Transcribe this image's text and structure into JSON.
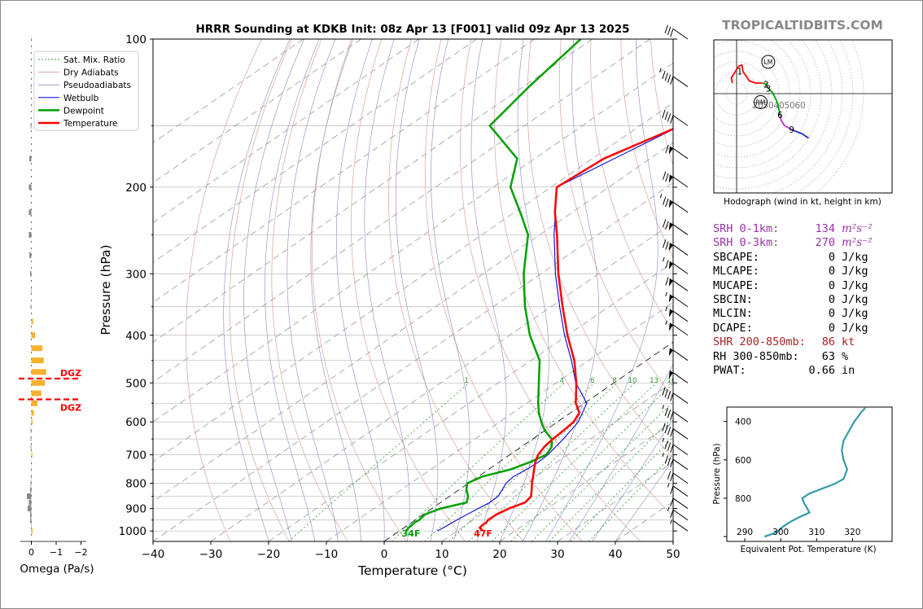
{
  "title": "HRRR Sounding at KDKB Init: 08z Apr 13 [F001] valid 09z Apr 13 2025",
  "watermark": "TROPICALTIDBITS.COM",
  "colors": {
    "temperature": "#ff0000",
    "dewpoint": "#00a000",
    "wetbulb": "#0000dd",
    "theta_e": "#3399aa",
    "srh": "#9933aa",
    "shr": "#aa2222",
    "dgz": "#ff0000",
    "omega_up": "#f5b030",
    "omega_down": "#888888"
  },
  "chart_data": [
    {
      "type": "line",
      "name": "skew-t",
      "xlabel": "Temperature (°C)",
      "ylabel": "Pressure (hPa)",
      "xlim": [
        -40,
        50
      ],
      "ylim": [
        1050,
        100
      ],
      "y_scale": "log",
      "x_ticks": [
        "−40",
        "−30",
        "−20",
        "−10",
        "0",
        "10",
        "20",
        "30",
        "40",
        "50"
      ],
      "y_ticks": [
        "100",
        "200",
        "300",
        "400",
        "500",
        "600",
        "700",
        "800",
        "900",
        "1000"
      ],
      "legend_position": "upper-left",
      "legend": [
        "Sat. Mix. Ratio",
        "Dry Adiabats",
        "Pseudoadiabats",
        "Wetbulb",
        "Dewpoint",
        "Temperature"
      ],
      "mixing_ratio_labels": [
        "1",
        "4",
        "6",
        "8",
        "10",
        "13",
        "16",
        "20",
        "24",
        "30",
        "36"
      ],
      "series": [
        {
          "name": "Temperature",
          "pressure": [
            1000,
            985,
            975,
            960,
            950,
            925,
            900,
            875,
            850,
            825,
            800,
            775,
            750,
            725,
            700,
            675,
            650,
            625,
            600,
            575,
            550,
            500,
            450,
            400,
            350,
            300,
            250,
            225,
            200,
            175,
            150,
            125,
            100
          ],
          "temperature": [
            14.5,
            13.1,
            12.9,
            12.9,
            12.6,
            12.7,
            13.3,
            14.6,
            14.1,
            12.6,
            11,
            9.5,
            7.9,
            6.3,
            4.9,
            4,
            3.5,
            3.2,
            2.8,
            1.5,
            -1.5,
            -6.5,
            -12.5,
            -20,
            -28,
            -37,
            -47,
            -53,
            -59,
            -58,
            -53,
            -54,
            -54
          ]
        },
        {
          "name": "Dewpoint",
          "pressure": [
            1000,
            985,
            975,
            960,
            950,
            925,
            900,
            875,
            850,
            825,
            800,
            775,
            750,
            725,
            700,
            675,
            650,
            625,
            600,
            575,
            550,
            500,
            450,
            400,
            350,
            300,
            250,
            225,
            200,
            175,
            150,
            125,
            100
          ],
          "temperature": [
            1.2,
            0.8,
            0.7,
            0.5,
            0.7,
            0.3,
            1.5,
            4.5,
            3.2,
            1.3,
            -0.2,
            0.7,
            3.8,
            5.3,
            6.3,
            5.3,
            3.3,
            0,
            -2.8,
            -5.5,
            -8,
            -13,
            -18.5,
            -26.5,
            -34.5,
            -43,
            -52,
            -59,
            -67,
            -73,
            -86,
            -89,
            -92
          ]
        },
        {
          "name": "Wetbulb",
          "pressure": [
            1000,
            975,
            950,
            925,
            900,
            875,
            850,
            825,
            800,
            775,
            750,
            725,
            700,
            650,
            600,
            550,
            500,
            450,
            400,
            350,
            300,
            250,
            200,
            150,
            125,
            100
          ],
          "temperature": [
            6.6,
            6.9,
            7.2,
            7.6,
            8,
            8.5,
            8.4,
            7.5,
            6.5,
            6.1,
            6.6,
            6.8,
            6.6,
            5.3,
            3.6,
            0.4,
            -6.6,
            -13,
            -20.5,
            -28.5,
            -37.5,
            -47.5,
            -59,
            -53,
            -54,
            -54
          ]
        }
      ],
      "annotations": [
        "34F",
        "47F"
      ]
    },
    {
      "type": "bar",
      "name": "omega",
      "xlabel": "Omega (Pa/s)",
      "x_ticks": [
        "0",
        "−1",
        "−2"
      ],
      "xlim": [
        0.25,
        -2.2
      ],
      "pressure": [
        1000,
        975,
        950,
        925,
        900,
        875,
        850,
        825,
        800,
        775,
        750,
        725,
        700,
        675,
        650,
        625,
        600,
        575,
        550,
        525,
        500,
        475,
        450,
        425,
        400,
        375,
        350,
        325,
        300,
        275,
        250,
        225,
        200,
        175,
        150,
        125,
        100
      ],
      "values": [
        -0.05,
        0.02,
        0.05,
        0.05,
        0.15,
        0.1,
        0.18,
        0.05,
        0.03,
        0.02,
        0.01,
        0.01,
        -0.04,
        0.0,
        0.0,
        0.0,
        -0.05,
        -0.1,
        -0.25,
        -0.4,
        -0.55,
        -0.6,
        -0.5,
        -0.45,
        -0.15,
        -0.07,
        0.0,
        0.02,
        0.05,
        0.08,
        0.1,
        0.1,
        0.1,
        0.08,
        0.03,
        0.02,
        0.01
      ],
      "dgz_label": "DGZ",
      "dgz_pressure": [
        490,
        540
      ]
    },
    {
      "type": "line",
      "name": "hodograph",
      "caption": "Hodograph (wind in kt, height in km)",
      "ring_labels": [
        "20",
        "30",
        "40",
        "50",
        "60"
      ],
      "height_labels": [
        "1",
        "2",
        "3",
        "6",
        "9"
      ],
      "storm_motion_labels": [
        "LM",
        "RM"
      ],
      "u": [
        -4,
        -5,
        -3,
        2,
        5,
        6,
        12,
        18,
        24,
        28,
        29,
        30,
        34,
        37,
        39,
        40,
        41,
        42,
        45,
        52,
        62,
        68
      ],
      "v": [
        10,
        15,
        18,
        26,
        27,
        21,
        12,
        10,
        10,
        9,
        6,
        5,
        1,
        -5,
        -10,
        -15,
        -20,
        -25,
        -30,
        -34,
        -38,
        -42
      ],
      "height_km": [
        0,
        0.3,
        0.5,
        0.8,
        0.9,
        1,
        1.5,
        2,
        2.5,
        3,
        3.2,
        3.5,
        4,
        4.5,
        5,
        5.5,
        6,
        6.5,
        7.5,
        9,
        10.5,
        12
      ]
    },
    {
      "type": "line",
      "name": "theta-e",
      "xlabel": "Equivalent Pot. Temperature (K)",
      "ylabel": "Pressure (hPa)",
      "x_ticks": [
        "290",
        "300",
        "310",
        "320"
      ],
      "y_ticks": [
        "400",
        "600",
        "800"
      ],
      "xlim": [
        285,
        331
      ],
      "ylim": [
        1025,
        325
      ],
      "pressure": [
        1000,
        990,
        975,
        950,
        925,
        900,
        875,
        850,
        825,
        800,
        775,
        750,
        725,
        700,
        650,
        600,
        550,
        500,
        450,
        400,
        350,
        330
      ],
      "theta_e": [
        295.5,
        297,
        299,
        300.5,
        302.5,
        305,
        308,
        307.3,
        306.5,
        306,
        308,
        311.5,
        315,
        317.5,
        318.5,
        317.5,
        317,
        317.5,
        319,
        320.5,
        322.5,
        323.5
      ]
    }
  ],
  "stats": [
    {
      "label": "SRH 0-1km:",
      "value": "134",
      "unit": "m²s⁻²",
      "kind": "srh"
    },
    {
      "label": "SRH 0-3km:",
      "value": "270",
      "unit": "m²s⁻²",
      "kind": "srh"
    },
    {
      "label": "SBCAPE:",
      "value": "0",
      "unit": "J/kg",
      "kind": "plain"
    },
    {
      "label": "MLCAPE:",
      "value": "0",
      "unit": "J/kg",
      "kind": "plain"
    },
    {
      "label": "MUCAPE:",
      "value": "0",
      "unit": "J/kg",
      "kind": "plain"
    },
    {
      "label": "SBCIN:",
      "value": "0",
      "unit": "J/kg",
      "kind": "plain"
    },
    {
      "label": "MLCIN:",
      "value": "0",
      "unit": "J/kg",
      "kind": "plain"
    },
    {
      "label": "DCAPE:",
      "value": "0",
      "unit": "J/kg",
      "kind": "plain"
    },
    {
      "label": "SHR 200-850mb:",
      "value": "86",
      "unit": "kt",
      "kind": "shr"
    },
    {
      "label": "RH 300-850mb:",
      "value": "63",
      "unit": "%",
      "kind": "plain"
    },
    {
      "label": "PWAT:",
      "value": "0.66",
      "unit": "in",
      "kind": "plain"
    }
  ],
  "wind_barbs": [
    {
      "p": 100,
      "kt": 30
    },
    {
      "p": 125,
      "kt": 45
    },
    {
      "p": 150,
      "kt": 40
    },
    {
      "p": 175,
      "kt": 60
    },
    {
      "p": 200,
      "kt": 70
    },
    {
      "p": 225,
      "kt": 75
    },
    {
      "p": 250,
      "kt": 70
    },
    {
      "p": 275,
      "kt": 70
    },
    {
      "p": 300,
      "kt": 65
    },
    {
      "p": 325,
      "kt": 60
    },
    {
      "p": 350,
      "kt": 55
    },
    {
      "p": 375,
      "kt": 55
    },
    {
      "p": 400,
      "kt": 55
    },
    {
      "p": 450,
      "kt": 50
    },
    {
      "p": 500,
      "kt": 50
    },
    {
      "p": 550,
      "kt": 40
    },
    {
      "p": 600,
      "kt": 35
    },
    {
      "p": 650,
      "kt": 40
    },
    {
      "p": 700,
      "kt": 35
    },
    {
      "p": 750,
      "kt": 35
    },
    {
      "p": 800,
      "kt": 20
    },
    {
      "p": 850,
      "kt": 15
    },
    {
      "p": 900,
      "kt": 10
    },
    {
      "p": 950,
      "kt": 15
    },
    {
      "p": 1000,
      "kt": 5
    }
  ]
}
